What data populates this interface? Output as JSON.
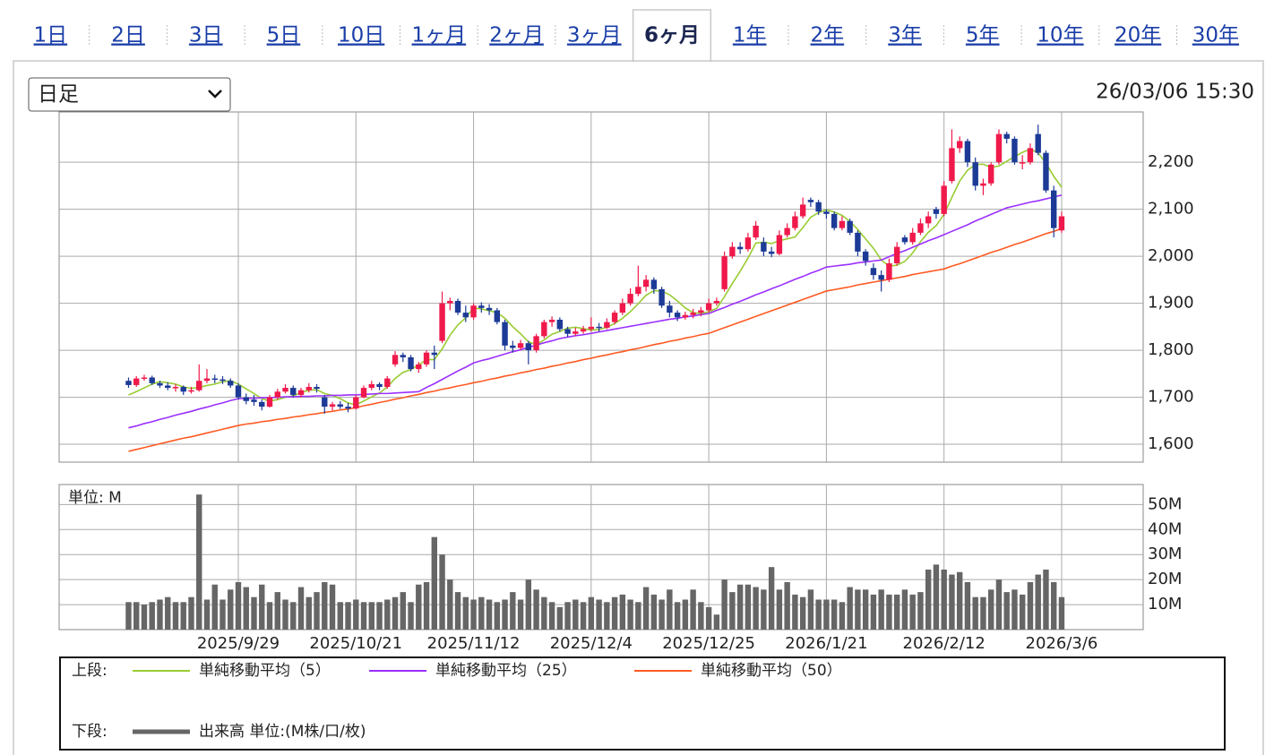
{
  "tabs": [
    "1日",
    "2日",
    "3日",
    "5日",
    "10日",
    "1ヶ月",
    "2ヶ月",
    "3ヶ月",
    "6ヶ月",
    "1年",
    "2年",
    "3年",
    "5年",
    "10年",
    "20年",
    "30年"
  ],
  "active_tab": 8,
  "period_select": "日足",
  "timestamp": "26/03/06 15:30",
  "legend": {
    "upper_label": "上段:",
    "lower_label": "下段:",
    "lower_name": "出来高 単位:(M株/口/枚)",
    "lower_color": "#666666"
  },
  "chart_data": [
    {
      "type": "candlestick",
      "categories": [
        null,
        null,
        null,
        null,
        null,
        null,
        null,
        null,
        null,
        null,
        null,
        null,
        null,
        null,
        "2025/9/29",
        null,
        null,
        null,
        null,
        null,
        null,
        null,
        null,
        null,
        null,
        null,
        null,
        null,
        null,
        "2025/10/21",
        null,
        null,
        null,
        null,
        null,
        null,
        null,
        null,
        null,
        null,
        null,
        null,
        null,
        null,
        "2025/11/12",
        null,
        null,
        null,
        null,
        null,
        null,
        null,
        null,
        null,
        null,
        null,
        null,
        null,
        null,
        "2025/12/4",
        null,
        null,
        null,
        null,
        null,
        null,
        null,
        null,
        null,
        null,
        null,
        null,
        null,
        null,
        "2025/12/25",
        null,
        null,
        null,
        null,
        null,
        null,
        null,
        null,
        null,
        null,
        null,
        null,
        null,
        null,
        "2026/1/21",
        null,
        null,
        null,
        null,
        null,
        null,
        null,
        null,
        null,
        null,
        null,
        null,
        null,
        null,
        "2026/2/12",
        null,
        null,
        null,
        null,
        null,
        null,
        null,
        null,
        null,
        null,
        null,
        null,
        null,
        null,
        "2026/3/6"
      ],
      "open": [
        1735,
        1726,
        1740,
        1742,
        1730,
        1725,
        1720,
        1722,
        1712,
        1715,
        1735,
        1740,
        1738,
        1735,
        1725,
        1700,
        1695,
        1690,
        1680,
        1700,
        1712,
        1720,
        1705,
        1715,
        1722,
        1700,
        1680,
        1685,
        1680,
        1676,
        1700,
        1720,
        1728,
        1722,
        1770,
        1790,
        1785,
        1760,
        1770,
        1795,
        1820,
        1900,
        1905,
        1880,
        1870,
        1895,
        1890,
        1885,
        1860,
        1810,
        1805,
        1815,
        1800,
        1830,
        1860,
        1865,
        1845,
        1835,
        1840,
        1845,
        1850,
        1848,
        1860,
        1880,
        1900,
        1920,
        1935,
        1950,
        1930,
        1895,
        1880,
        1870,
        1875,
        1880,
        1885,
        1900,
        1930,
        2000,
        2020,
        2015,
        2040,
        2030,
        2010,
        2005,
        2045,
        2060,
        2085,
        2120,
        2115,
        2095,
        2090,
        2060,
        2075,
        2050,
        2010,
        1975,
        1960,
        1950,
        1985,
        2040,
        2030,
        2050,
        2070,
        2100,
        2090,
        2160,
        2230,
        2245,
        2200,
        2150,
        2155,
        2200,
        2260,
        2250,
        2200,
        2200,
        2260,
        2220,
        2140,
        2055
      ],
      "high": [
        1742,
        1745,
        1748,
        1746,
        1735,
        1732,
        1728,
        1725,
        1722,
        1770,
        1760,
        1748,
        1745,
        1740,
        1730,
        1708,
        1705,
        1695,
        1705,
        1718,
        1728,
        1725,
        1720,
        1730,
        1728,
        1705,
        1690,
        1692,
        1688,
        1705,
        1725,
        1735,
        1732,
        1745,
        1798,
        1795,
        1790,
        1775,
        1800,
        1810,
        1925,
        1912,
        1910,
        1895,
        1900,
        1902,
        1898,
        1890,
        1865,
        1820,
        1822,
        1820,
        1835,
        1865,
        1872,
        1870,
        1850,
        1848,
        1852,
        1870,
        1858,
        1868,
        1885,
        1910,
        1932,
        1980,
        1960,
        1955,
        1935,
        1905,
        1885,
        1882,
        1888,
        1892,
        1910,
        1912,
        2010,
        2030,
        2030,
        2050,
        2075,
        2040,
        2020,
        2055,
        2070,
        2095,
        2125,
        2125,
        2120,
        2100,
        2095,
        2085,
        2080,
        2055,
        2015,
        1985,
        1970,
        1995,
        2030,
        2045,
        2060,
        2080,
        2095,
        2105,
        2160,
        2270,
        2255,
        2250,
        2210,
        2165,
        2200,
        2270,
        2265,
        2255,
        2215,
        2240,
        2280,
        2225,
        2150,
        2095
      ],
      "low": [
        1720,
        1722,
        1735,
        1726,
        1720,
        1715,
        1712,
        1705,
        1708,
        1712,
        1730,
        1730,
        1728,
        1720,
        1695,
        1685,
        1682,
        1672,
        1678,
        1695,
        1708,
        1700,
        1700,
        1710,
        1710,
        1665,
        1672,
        1675,
        1668,
        1674,
        1698,
        1715,
        1715,
        1718,
        1765,
        1775,
        1755,
        1752,
        1765,
        1760,
        1815,
        1885,
        1875,
        1860,
        1865,
        1880,
        1875,
        1855,
        1800,
        1795,
        1800,
        1770,
        1795,
        1825,
        1850,
        1840,
        1828,
        1830,
        1835,
        1840,
        1840,
        1845,
        1855,
        1875,
        1895,
        1915,
        1925,
        1920,
        1890,
        1870,
        1862,
        1865,
        1868,
        1872,
        1880,
        1895,
        1925,
        1995,
        2005,
        2010,
        2035,
        2000,
        1998,
        2002,
        2040,
        2055,
        2080,
        2105,
        2088,
        2080,
        2055,
        2055,
        2045,
        2000,
        1980,
        1950,
        1925,
        1945,
        1980,
        2025,
        2025,
        2045,
        2060,
        2080,
        2085,
        2155,
        2220,
        2190,
        2140,
        2130,
        2150,
        2195,
        2240,
        2195,
        2185,
        2195,
        2215,
        2135,
        2040,
        2050
      ],
      "close": [
        1726,
        1740,
        1742,
        1730,
        1725,
        1720,
        1722,
        1712,
        1715,
        1735,
        1740,
        1738,
        1735,
        1725,
        1700,
        1692,
        1690,
        1680,
        1700,
        1712,
        1720,
        1705,
        1715,
        1722,
        1718,
        1680,
        1685,
        1680,
        1676,
        1700,
        1720,
        1728,
        1722,
        1740,
        1790,
        1785,
        1760,
        1770,
        1795,
        1790,
        1900,
        1905,
        1880,
        1870,
        1895,
        1890,
        1885,
        1860,
        1810,
        1805,
        1815,
        1800,
        1830,
        1860,
        1865,
        1845,
        1835,
        1840,
        1845,
        1850,
        1848,
        1860,
        1880,
        1900,
        1920,
        1935,
        1950,
        1930,
        1895,
        1880,
        1870,
        1875,
        1880,
        1885,
        1900,
        1905,
        2000,
        2020,
        2015,
        2040,
        2065,
        2010,
        2005,
        2045,
        2060,
        2085,
        2110,
        2115,
        2095,
        2090,
        2060,
        2075,
        2050,
        2010,
        1990,
        1960,
        1950,
        1985,
        2020,
        2030,
        2050,
        2070,
        2085,
        2090,
        2150,
        2230,
        2245,
        2200,
        2150,
        2155,
        2195,
        2260,
        2250,
        2200,
        2200,
        2230,
        2220,
        2140,
        2060,
        2085
      ],
      "up_color": "#f0194b",
      "down_color": "#1c3a96",
      "series": [
        {
          "name": "単純移動平均（5）",
          "color": "#99cc33",
          "values": [
            1705,
            1712,
            1720,
            1728,
            1733,
            1731,
            1728,
            1722,
            1719,
            1721,
            1725,
            1728,
            1733,
            1735,
            1728,
            1718,
            1708,
            1697,
            1692,
            1695,
            1700,
            1703,
            1710,
            1715,
            1716,
            1708,
            1704,
            1697,
            1688,
            1684,
            1692,
            1701,
            1709,
            1722,
            1740,
            1753,
            1759,
            1769,
            1780,
            1780,
            1803,
            1832,
            1854,
            1869,
            1890,
            1888,
            1884,
            1880,
            1868,
            1850,
            1835,
            1818,
            1812,
            1822,
            1834,
            1840,
            1847,
            1849,
            1846,
            1843,
            1844,
            1849,
            1857,
            1868,
            1882,
            1899,
            1917,
            1927,
            1926,
            1918,
            1905,
            1890,
            1880,
            1878,
            1882,
            1889,
            1914,
            1942,
            1968,
            1996,
            2028,
            2030,
            2027,
            2033,
            2037,
            2041,
            2061,
            2083,
            2093,
            2099,
            2094,
            2087,
            2074,
            2057,
            2037,
            2017,
            1992,
            1979,
            1981,
            1989,
            2007,
            2031,
            2051,
            2065,
            2089,
            2125,
            2160,
            2183,
            2195,
            2196,
            2189,
            2192,
            2202,
            2212,
            2221,
            2228,
            2220,
            2198,
            2170,
            2147
          ]
        },
        {
          "name": "単純移動平均（25）",
          "color": "#9b30ff",
          "values": [
            1635,
            1639,
            1644,
            1648,
            1653,
            1657,
            1662,
            1666,
            1670,
            1675,
            1679,
            1684,
            1688,
            1693,
            1697,
            1698,
            1698,
            1699,
            1699,
            1700,
            1701,
            1701,
            1702,
            1702,
            1703,
            1703,
            1704,
            1704,
            1705,
            1705,
            1706,
            1707,
            1708,
            1708,
            1709,
            1710,
            1711,
            1712,
            1721,
            1729,
            1738,
            1747,
            1756,
            1764,
            1773,
            1778,
            1782,
            1787,
            1792,
            1797,
            1801,
            1806,
            1811,
            1816,
            1820,
            1825,
            1828,
            1831,
            1833,
            1836,
            1839,
            1842,
            1845,
            1848,
            1851,
            1854,
            1857,
            1860,
            1863,
            1866,
            1868,
            1871,
            1873,
            1876,
            1878,
            1885,
            1891,
            1898,
            1904,
            1911,
            1918,
            1924,
            1931,
            1937,
            1944,
            1951,
            1957,
            1964,
            1970,
            1977,
            1979,
            1981,
            1983,
            1986,
            1988,
            1990,
            1992,
            1999,
            2006,
            2012,
            2019,
            2026,
            2033,
            2039,
            2046,
            2053,
            2060,
            2067,
            2075,
            2082,
            2089,
            2096,
            2103,
            2107,
            2111,
            2115,
            2118,
            2122,
            2126,
            2130
          ]
        },
        {
          "name": "単純移動平均（50）",
          "color": "#ff5a22",
          "values": [
            1585,
            1589,
            1593,
            1597,
            1601,
            1605,
            1609,
            1613,
            1616,
            1620,
            1624,
            1628,
            1632,
            1636,
            1640,
            1643,
            1645,
            1648,
            1650,
            1653,
            1655,
            1658,
            1660,
            1663,
            1665,
            1668,
            1670,
            1673,
            1675,
            1678,
            1682,
            1685,
            1689,
            1692,
            1696,
            1699,
            1703,
            1706,
            1710,
            1713,
            1717,
            1720,
            1724,
            1727,
            1731,
            1734,
            1738,
            1741,
            1745,
            1748,
            1752,
            1755,
            1759,
            1762,
            1766,
            1769,
            1773,
            1776,
            1780,
            1783,
            1787,
            1790,
            1794,
            1797,
            1801,
            1804,
            1808,
            1812,
            1815,
            1819,
            1822,
            1826,
            1829,
            1833,
            1836,
            1842,
            1848,
            1854,
            1860,
            1866,
            1872,
            1878,
            1884,
            1890,
            1896,
            1902,
            1908,
            1914,
            1920,
            1926,
            1929,
            1932,
            1935,
            1939,
            1942,
            1945,
            1948,
            1951,
            1954,
            1957,
            1961,
            1964,
            1967,
            1970,
            1973,
            1979,
            1984,
            1990,
            1996,
            2002,
            2008,
            2013,
            2019,
            2025,
            2030,
            2036,
            2042,
            2048,
            2053,
            2059
          ]
        }
      ],
      "ylim": [
        1562,
        2307
      ],
      "yticks": [
        {
          "value": 1600,
          "label": "1,600"
        },
        {
          "value": 1700,
          "label": "1,700"
        },
        {
          "value": 1800,
          "label": "1,800"
        },
        {
          "value": 1900,
          "label": "1,900"
        },
        {
          "value": 2000,
          "label": "2,000"
        },
        {
          "value": 2100,
          "label": "2,100"
        },
        {
          "value": 2200,
          "label": "2,200"
        }
      ],
      "grid": true
    },
    {
      "type": "bar",
      "unit_label": "単位: M",
      "color": "#666666",
      "values": [
        11,
        11,
        10,
        11,
        12,
        13,
        11,
        11,
        13,
        54,
        12,
        18,
        12,
        16,
        19,
        17,
        13,
        18,
        11,
        15,
        12,
        11,
        17,
        13,
        15,
        19,
        18,
        11,
        11,
        12,
        11,
        11,
        11,
        12,
        13,
        15,
        11,
        18,
        19,
        37,
        30,
        20,
        15,
        13,
        12,
        13,
        12,
        11,
        12,
        15,
        12,
        20,
        16,
        13,
        11,
        9,
        11,
        12,
        11,
        13,
        12,
        11,
        13,
        14,
        12,
        11,
        17,
        14,
        12,
        16,
        11,
        12,
        16,
        11,
        9,
        6,
        20,
        15,
        18,
        18,
        17,
        16,
        25,
        16,
        19,
        14,
        13,
        16,
        12,
        12,
        12,
        11,
        17,
        16,
        16,
        14,
        16,
        14,
        14,
        16,
        14,
        15,
        24,
        26,
        24,
        22,
        23,
        19,
        13,
        13,
        16,
        20,
        15,
        16,
        14,
        19,
        22,
        24,
        19,
        13
      ],
      "ylim": [
        0,
        58
      ],
      "yticks": [
        {
          "value": 10,
          "label": "10M"
        },
        {
          "value": 20,
          "label": "20M"
        },
        {
          "value": 30,
          "label": "30M"
        },
        {
          "value": 40,
          "label": "40M"
        },
        {
          "value": 50,
          "label": "50M"
        }
      ],
      "grid": true
    }
  ]
}
